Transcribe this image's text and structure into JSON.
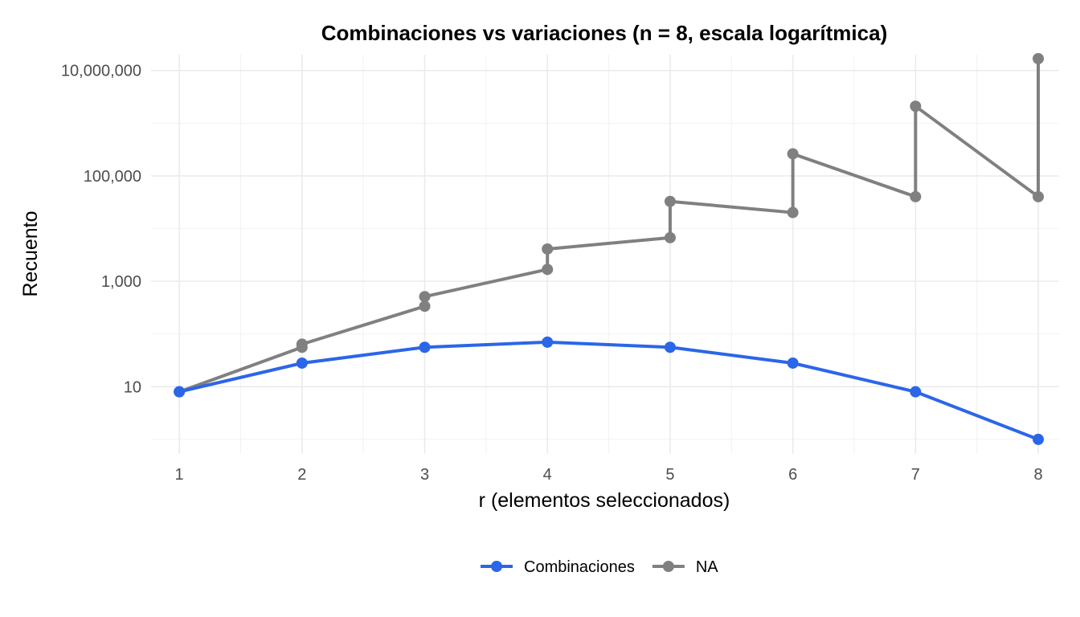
{
  "chart_data": {
    "type": "line",
    "title": "Combinaciones vs variaciones (n = 8, escala logarítmica)",
    "xlabel": "r (elementos seleccionados)",
    "ylabel": "Recuento",
    "x_ticks": [
      "1",
      "2",
      "3",
      "4",
      "5",
      "6",
      "7",
      "8"
    ],
    "y_scale": "log10",
    "y_ticks": [
      {
        "value": 10,
        "label": "10"
      },
      {
        "value": 1000,
        "label": "1,000"
      },
      {
        "value": 100000,
        "label": "100,000"
      },
      {
        "value": 10000000,
        "label": "10,000,000"
      }
    ],
    "xlim": [
      0.77,
      8.17
    ],
    "ylim": [
      0.53,
      20000000
    ],
    "grid": true,
    "legend_position": "bottom",
    "series": [
      {
        "name": "Combinaciones",
        "color": "#2b66e8",
        "points": [
          {
            "x": 1,
            "y": 8
          },
          {
            "x": 2,
            "y": 28
          },
          {
            "x": 3,
            "y": 56
          },
          {
            "x": 4,
            "y": 70
          },
          {
            "x": 5,
            "y": 56
          },
          {
            "x": 6,
            "y": 28
          },
          {
            "x": 7,
            "y": 8
          },
          {
            "x": 8,
            "y": 1
          }
        ]
      },
      {
        "name": "NA",
        "color": "#808080",
        "points": [
          {
            "x": 1,
            "y": 8
          },
          {
            "x": 2,
            "y": 56
          },
          {
            "x": 2,
            "y": 64
          },
          {
            "x": 3,
            "y": 336
          },
          {
            "x": 3,
            "y": 512
          },
          {
            "x": 4,
            "y": 1680
          },
          {
            "x": 4,
            "y": 4096
          },
          {
            "x": 5,
            "y": 6720
          },
          {
            "x": 5,
            "y": 32768
          },
          {
            "x": 6,
            "y": 20160
          },
          {
            "x": 6,
            "y": 262144
          },
          {
            "x": 7,
            "y": 40320
          },
          {
            "x": 7,
            "y": 2097152
          },
          {
            "x": 8,
            "y": 40320
          },
          {
            "x": 8,
            "y": 16777216
          }
        ]
      }
    ]
  }
}
